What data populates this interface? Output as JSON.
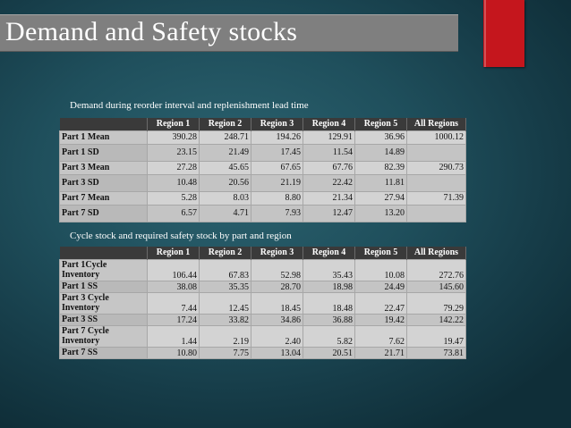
{
  "slide": {
    "title": "Demand and Safety stocks",
    "accent_red": "#c5161d",
    "title_bar_color": "#7f7f7f"
  },
  "table1": {
    "caption": "Demand during reorder interval and replenishment lead time",
    "headers": [
      "",
      "Region 1",
      "Region 2",
      "Region 3",
      "Region 4",
      "Region 5",
      "All Regions"
    ],
    "rows": [
      [
        "Part 1 Mean",
        "390.28",
        "248.71",
        "194.26",
        "129.91",
        "36.96",
        "1000.12"
      ],
      [
        "Part 1 SD",
        "23.15",
        "21.49",
        "17.45",
        "11.54",
        "14.89",
        ""
      ],
      [
        "Part 3 Mean",
        "27.28",
        "45.65",
        "67.65",
        "67.76",
        "82.39",
        "290.73"
      ],
      [
        "Part 3 SD",
        "10.48",
        "20.56",
        "21.19",
        "22.42",
        "11.81",
        ""
      ],
      [
        "Part 7 Mean",
        "5.28",
        "8.03",
        "8.80",
        "21.34",
        "27.94",
        "71.39"
      ],
      [
        "Part 7 SD",
        "6.57",
        "4.71",
        "7.93",
        "12.47",
        "13.20",
        ""
      ]
    ]
  },
  "table2": {
    "caption": "Cycle stock and required safety stock by part and region",
    "headers": [
      "",
      "Region 1",
      "Region 2",
      "Region 3",
      "Region 4",
      "Region 5",
      "All Regions"
    ],
    "rows": [
      [
        "Part 1Cycle Inventory",
        "106.44",
        "67.83",
        "52.98",
        "35.43",
        "10.08",
        "272.76"
      ],
      [
        "Part 1 SS",
        "38.08",
        "35.35",
        "28.70",
        "18.98",
        "24.49",
        "145.60"
      ],
      [
        "Part 3 Cycle Inventory",
        "7.44",
        "12.45",
        "18.45",
        "18.48",
        "22.47",
        "79.29"
      ],
      [
        "Part 3 SS",
        "17.24",
        "33.82",
        "34.86",
        "36.88",
        "19.42",
        "142.22"
      ],
      [
        "Part 7 Cycle Inventory",
        "1.44",
        "2.19",
        "2.40",
        "5.82",
        "7.62",
        "19.47"
      ],
      [
        "Part 7 SS",
        "10.80",
        "7.75",
        "13.04",
        "20.51",
        "21.71",
        "73.81"
      ]
    ]
  }
}
